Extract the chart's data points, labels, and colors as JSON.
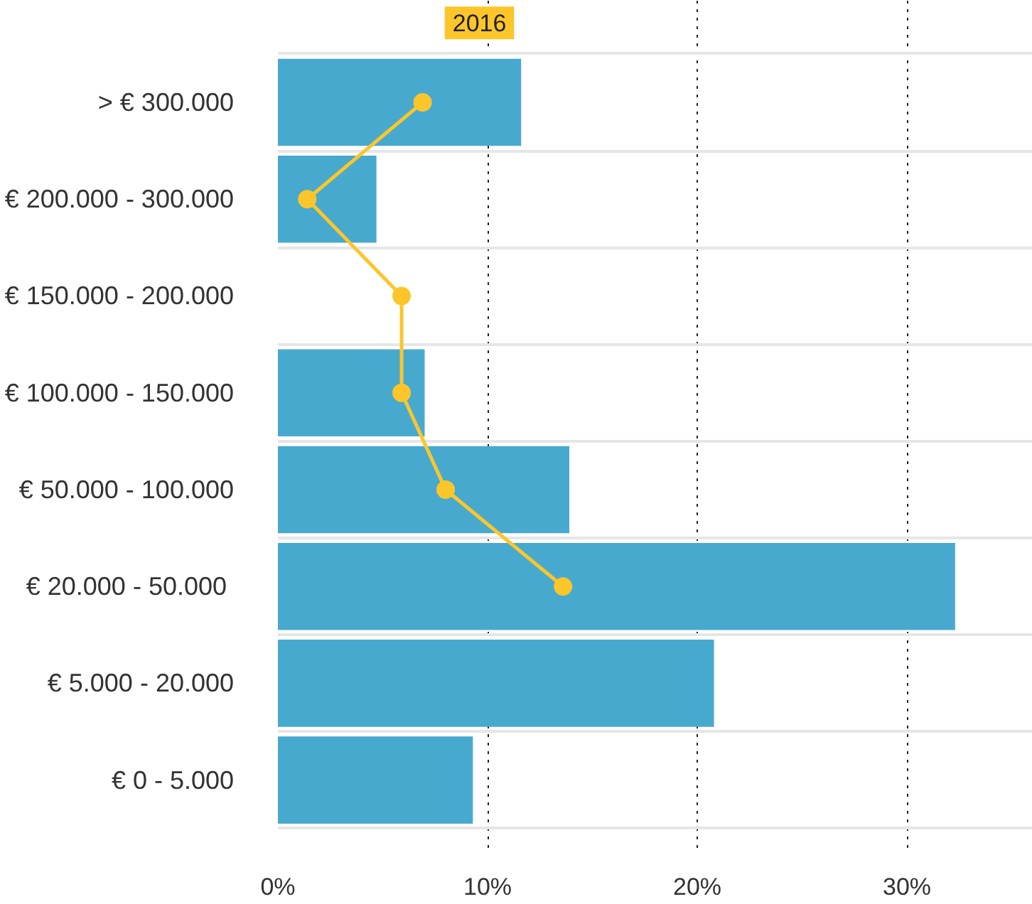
{
  "chart_data": {
    "type": "bar",
    "orientation": "horizontal",
    "categories": [
      "> € 300.000",
      "€ 200.000 - 300.000",
      "€ 150.000 - 200.000",
      "€ 100.000 - 150.000",
      "€ 50.000 - 100.000",
      "€ 20.000 -  50.000",
      "€ 5.000 - 20.000",
      "€ 0 - 5.000"
    ],
    "series": [
      {
        "color": "#48a9cf",
        "values": [
          11.6,
          4.7,
          0,
          7.0,
          13.9,
          32.3,
          20.8,
          9.3
        ]
      },
      {
        "name": "2016",
        "type": "line",
        "color": "#fcc62a",
        "values": [
          6.9,
          1.4,
          5.9,
          5.9,
          8.0,
          13.6,
          null,
          null
        ]
      }
    ],
    "xlim": [
      0,
      36
    ],
    "xticks": [
      {
        "value": 0,
        "label": "0%"
      },
      {
        "value": 10,
        "label": "10%"
      },
      {
        "value": 20,
        "label": "20%"
      },
      {
        "value": 30,
        "label": "30%"
      }
    ],
    "grid": true,
    "marker": "circle"
  }
}
